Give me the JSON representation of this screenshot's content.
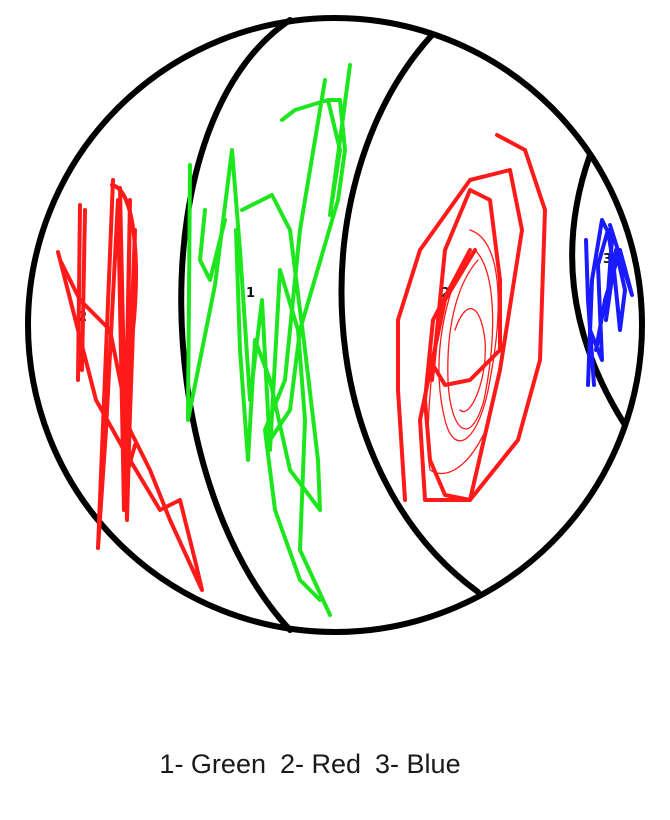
{
  "regions": {
    "left": {
      "number": "2"
    },
    "middle": {
      "number": "1"
    },
    "right": {
      "number": "2"
    },
    "far_right": {
      "number": "3"
    }
  },
  "legend": {
    "items": [
      {
        "label": "1- Green"
      },
      {
        "label": "2- Red"
      },
      {
        "label": "3- Blue"
      }
    ]
  },
  "colors": {
    "outline": "#000000",
    "green": "#1ee61e",
    "red": "#ff1a1a",
    "blue": "#1a1aff"
  }
}
